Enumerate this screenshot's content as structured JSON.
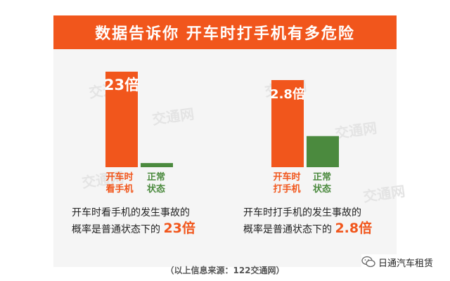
{
  "title": "数据告诉你 开车时打手机有多危险",
  "watermark_text": "交通网",
  "colors": {
    "accent": "#f1561c",
    "normal_bar": "#4b8a3e",
    "danger_label": "#f1561c",
    "normal_label": "#4b8a3e"
  },
  "chart_data": [
    {
      "type": "bar",
      "categories": [
        "开车时看手机",
        "正常状态"
      ],
      "category_lines": [
        [
          "开车时",
          "看手机"
        ],
        [
          "正常",
          "状态"
        ]
      ],
      "values": [
        23,
        1
      ],
      "value_labels": [
        "23倍",
        ""
      ],
      "ylim": [
        0,
        23
      ]
    },
    {
      "type": "bar",
      "categories": [
        "开车时打手机",
        "正常状态"
      ],
      "category_lines": [
        [
          "开车时",
          "打手机"
        ],
        [
          "正常",
          "状态"
        ]
      ],
      "values": [
        2.8,
        1
      ],
      "value_labels": [
        "2.8倍",
        ""
      ],
      "ylim": [
        0,
        2.8
      ]
    }
  ],
  "descriptions": [
    {
      "line1": "开车时看手机的发生事故的",
      "line2_prefix": "概率是普通状态下的",
      "highlight": "23倍"
    },
    {
      "line1": "开车时打手机的发生事故的",
      "line2_prefix": "概率是普通状态下的",
      "highlight": "2.8倍"
    }
  ],
  "source": "（以上信息来源：122交通网）",
  "brand": {
    "icon": "wechat-icon",
    "name": "日通汽车租赁"
  }
}
